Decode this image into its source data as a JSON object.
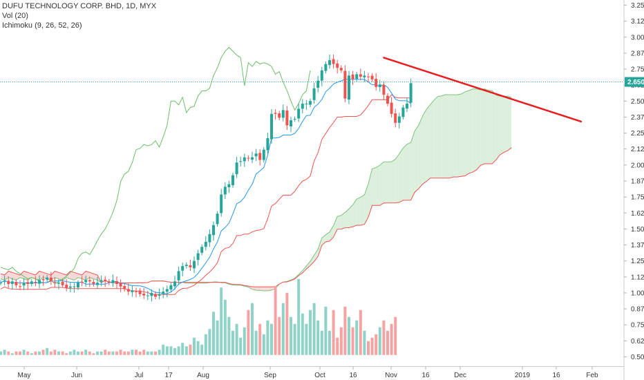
{
  "legend": {
    "title": "DUFU TECHNOLOGY CORP. BHD, 1D, MYX",
    "volume": "Vol (20)",
    "ichimoku": "Ichimoku (9, 26, 52, 26)"
  },
  "chart_data": {
    "type": "candlestick",
    "title": "DUFU TECHNOLOGY CORP. BHD, 1D, MYX",
    "y_axis": {
      "position": "right",
      "range": [
        0.45,
        3.29
      ],
      "ticks": [
        "3.250",
        "3.125",
        "3.000",
        "2.875",
        "2.750",
        "2.625",
        "2.500",
        "2.375",
        "2.250",
        "2.125",
        "2.000",
        "1.875",
        "1.750",
        "1.625",
        "1.500",
        "1.375",
        "1.250",
        "1.125",
        "1.000",
        "0.875",
        "0.750",
        "0.625",
        "0.500"
      ]
    },
    "x_axis": {
      "ticks": [
        "May",
        "Jun",
        "Jul",
        "17",
        "Aug",
        "Sep",
        "Oct",
        "16",
        "Nov",
        "16",
        "Dec",
        "2019",
        "16",
        "Feb"
      ]
    },
    "last_price": {
      "value": 2.65,
      "label": "2.650"
    },
    "colors": {
      "up": "#26a69a",
      "down": "#ef5350",
      "tenkan": "#2196f3",
      "kijun": "#ef5350",
      "chikou": "#6abf69",
      "cloud_up": "#dcefdc",
      "cloud_down": "#f8d8d8",
      "trendline": "#e61e1e",
      "price_line": "#26a69a"
    },
    "trendline": {
      "from": {
        "day": 99,
        "price": 2.84
      },
      "to": {
        "day": 150,
        "price": 2.34
      }
    }
  }
}
